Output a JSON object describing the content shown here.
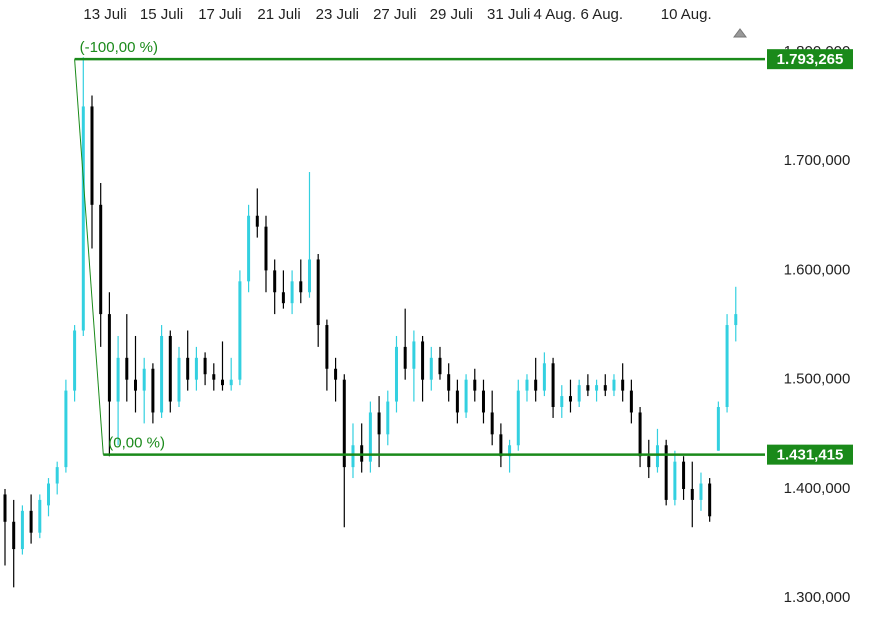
{
  "chart_data": {
    "type": "candlestick",
    "up_color": "#33d0e0",
    "down_color": "#000000",
    "level_color": "#1a8a1a",
    "xlim": [
      -0.575,
      87.36
    ],
    "ylim": [
      1272.8,
      1847.4
    ],
    "xticks": [
      {
        "value": 11.5,
        "label": "13 Juli"
      },
      {
        "value": 18.0,
        "label": "15 Juli"
      },
      {
        "value": 24.7,
        "label": "17 Juli"
      },
      {
        "value": 31.5,
        "label": "21 Juli"
      },
      {
        "value": 38.2,
        "label": "23 Juli"
      },
      {
        "value": 44.8,
        "label": "27 Juli"
      },
      {
        "value": 51.3,
        "label": "29 Juli"
      },
      {
        "value": 57.9,
        "label": "31 Juli"
      },
      {
        "value": 63.2,
        "label": "4 Aug."
      },
      {
        "value": 68.6,
        "label": "6 Aug."
      },
      {
        "value": 78.3,
        "label": "10 Aug."
      }
    ],
    "yticks": [
      {
        "value": 1300,
        "label": "1.300,000"
      },
      {
        "value": 1400,
        "label": "1.400,000"
      },
      {
        "value": 1500,
        "label": "1.500,000"
      },
      {
        "value": 1600,
        "label": "1.600,000"
      },
      {
        "value": 1700,
        "label": "1.700,000"
      },
      {
        "value": 1800,
        "label": "1.800,000"
      }
    ],
    "levels": [
      {
        "value": 1793.265,
        "label": "1.793,265",
        "annotation": "(-100,00 %)",
        "x_start": 8.0
      },
      {
        "value": 1431.415,
        "label": "1.431,415",
        "annotation": "(0,00 %)",
        "x_start": 11.3
      }
    ],
    "open": [
      1395,
      1370,
      1345,
      1380,
      1360,
      1385,
      1405,
      1420,
      1490,
      1545,
      1750,
      1660,
      1560,
      1480,
      1520,
      1500,
      1490,
      1510,
      1470,
      1540,
      1480,
      1520,
      1500,
      1520,
      1505,
      1500,
      1495,
      1500,
      1590,
      1650,
      1640,
      1600,
      1580,
      1570,
      1590,
      1580,
      1610,
      1550,
      1510,
      1500,
      1420,
      1440,
      1425,
      1470,
      1450,
      1480,
      1530,
      1510,
      1535,
      1500,
      1520,
      1505,
      1490,
      1470,
      1500,
      1490,
      1470,
      1450,
      1430,
      1440,
      1490,
      1500,
      1490,
      1515,
      1475,
      1485,
      1480,
      1495,
      1490,
      1495,
      1490,
      1500,
      1490,
      1470,
      1430,
      1420,
      1440,
      1390,
      1425,
      1400,
      1390,
      1405,
      1435,
      1475,
      1550
    ],
    "high": [
      1400,
      1390,
      1385,
      1395,
      1395,
      1410,
      1425,
      1500,
      1550,
      1795,
      1760,
      1680,
      1580,
      1540,
      1560,
      1540,
      1520,
      1515,
      1550,
      1545,
      1530,
      1545,
      1530,
      1525,
      1515,
      1535,
      1520,
      1600,
      1660,
      1675,
      1650,
      1610,
      1600,
      1600,
      1610,
      1690,
      1615,
      1555,
      1520,
      1505,
      1460,
      1460,
      1480,
      1485,
      1490,
      1540,
      1565,
      1545,
      1540,
      1530,
      1530,
      1515,
      1500,
      1505,
      1510,
      1500,
      1490,
      1460,
      1445,
      1500,
      1505,
      1520,
      1525,
      1520,
      1495,
      1500,
      1500,
      1505,
      1500,
      1505,
      1505,
      1515,
      1500,
      1475,
      1445,
      1455,
      1445,
      1435,
      1430,
      1425,
      1415,
      1410,
      1480,
      1560,
      1585
    ],
    "low": [
      1330,
      1310,
      1340,
      1350,
      1355,
      1375,
      1395,
      1415,
      1480,
      1540,
      1620,
      1530,
      1430,
      1440,
      1480,
      1470,
      1460,
      1460,
      1465,
      1470,
      1475,
      1490,
      1490,
      1495,
      1490,
      1490,
      1490,
      1495,
      1580,
      1630,
      1580,
      1560,
      1565,
      1560,
      1570,
      1575,
      1530,
      1490,
      1480,
      1365,
      1410,
      1415,
      1415,
      1420,
      1440,
      1470,
      1500,
      1480,
      1480,
      1490,
      1500,
      1480,
      1460,
      1465,
      1480,
      1460,
      1440,
      1420,
      1415,
      1435,
      1480,
      1480,
      1485,
      1465,
      1465,
      1470,
      1475,
      1485,
      1480,
      1485,
      1485,
      1480,
      1460,
      1420,
      1410,
      1415,
      1385,
      1385,
      1390,
      1365,
      1380,
      1370,
      1435,
      1470,
      1535
    ],
    "close": [
      1370,
      1345,
      1380,
      1360,
      1390,
      1405,
      1420,
      1490,
      1545,
      1750,
      1660,
      1560,
      1480,
      1520,
      1500,
      1490,
      1510,
      1470,
      1540,
      1480,
      1520,
      1500,
      1520,
      1505,
      1500,
      1495,
      1500,
      1590,
      1650,
      1640,
      1600,
      1580,
      1570,
      1590,
      1580,
      1610,
      1550,
      1510,
      1500,
      1420,
      1440,
      1425,
      1470,
      1450,
      1480,
      1530,
      1510,
      1535,
      1500,
      1520,
      1505,
      1490,
      1470,
      1500,
      1490,
      1470,
      1450,
      1430,
      1440,
      1490,
      1500,
      1490,
      1515,
      1475,
      1485,
      1480,
      1495,
      1490,
      1495,
      1490,
      1500,
      1490,
      1470,
      1430,
      1420,
      1440,
      1390,
      1425,
      1400,
      1390,
      1405,
      1375,
      1475,
      1550,
      1560
    ]
  }
}
